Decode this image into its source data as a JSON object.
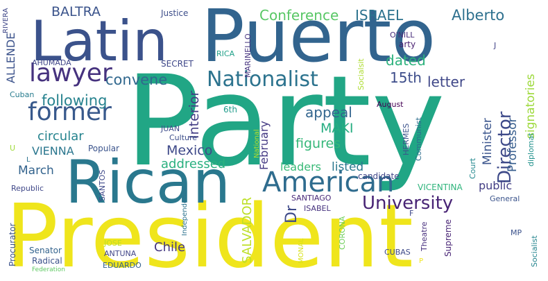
{
  "words": [
    {
      "text": "Party",
      "color": "#21a685"
    },
    {
      "text": "President",
      "color": "#efe51c"
    },
    {
      "text": "Puerto",
      "color": "#32648e"
    },
    {
      "text": "Rican",
      "color": "#2a788e"
    },
    {
      "text": "Latin",
      "color": "#3b528b"
    },
    {
      "text": "American",
      "color": "#2f6c8e"
    },
    {
      "text": "lawyer",
      "color": "#46327e"
    },
    {
      "text": "former",
      "color": "#38598c"
    },
    {
      "text": "Nationalist",
      "color": "#2c738e"
    },
    {
      "text": "University",
      "color": "#482475"
    },
    {
      "text": "Director",
      "color": "#3e4a89"
    },
    {
      "text": "Conference",
      "color": "#58c765"
    },
    {
      "text": "ISRAEL",
      "color": "#2c728e"
    },
    {
      "text": "Alberto",
      "color": "#2d708e"
    },
    {
      "text": "BALTRA",
      "color": "#3a538b"
    },
    {
      "text": "convene",
      "color": "#31688e"
    },
    {
      "text": "dated",
      "color": "#2db27d"
    },
    {
      "text": "15th",
      "color": "#3d4d8a"
    },
    {
      "text": "letter",
      "color": "#3f4788"
    },
    {
      "text": "following",
      "color": "#26828e"
    },
    {
      "text": "circular",
      "color": "#25838e"
    },
    {
      "text": "appeal",
      "color": "#32658e"
    },
    {
      "text": "MAKI",
      "color": "#26ad81"
    },
    {
      "text": "figures",
      "color": "#35b779"
    },
    {
      "text": "Mexico",
      "color": "#3e4989"
    },
    {
      "text": "addressed",
      "color": "#2ab07f"
    },
    {
      "text": "leaders",
      "color": "#38b977"
    },
    {
      "text": "listed",
      "color": "#2a778e"
    },
    {
      "text": "March",
      "color": "#33638d"
    },
    {
      "text": "VIENNA",
      "color": "#2a768e"
    },
    {
      "text": "Chile",
      "color": "#453882"
    },
    {
      "text": "public",
      "color": "#433e85"
    },
    {
      "text": "ALLENDE",
      "color": "#3b528b"
    },
    {
      "text": "Interior",
      "color": "#433e85"
    },
    {
      "text": "Professor",
      "color": "#365d8d"
    },
    {
      "text": "Minister",
      "color": "#3a548c"
    },
    {
      "text": "signatories",
      "color": "#9dd93b"
    },
    {
      "text": "February",
      "color": "#443983"
    },
    {
      "text": "SALVADOR",
      "color": "#bddf26"
    },
    {
      "text": "Dr",
      "color": "#3e4a89"
    },
    {
      "text": "Justice",
      "color": "#3d4e8a"
    },
    {
      "text": "Cuban",
      "color": "#287c8e"
    },
    {
      "text": "AHUMADA",
      "color": "#404588"
    },
    {
      "text": "SECRET",
      "color": "#3f4889"
    },
    {
      "text": "RICA",
      "color": "#1fa088"
    },
    {
      "text": "MARINELLO",
      "color": "#46337f"
    },
    {
      "text": "O'NILL",
      "color": "#472c7a"
    },
    {
      "text": "arty",
      "color": "#481f70"
    },
    {
      "text": "J",
      "color": "#414287"
    },
    {
      "text": "Socialsit",
      "color": "#addc30"
    },
    {
      "text": "6th",
      "color": "#1e9b8a"
    },
    {
      "text": "JUAN",
      "color": "#3e4c8a"
    },
    {
      "text": "Culture",
      "color": "#3d4e8a"
    },
    {
      "text": "Popular",
      "color": "#3a538b"
    },
    {
      "text": "August",
      "color": "#440154"
    },
    {
      "text": "Communist",
      "color": "#2e6e8e"
    },
    {
      "text": "diplomat",
      "color": "#21918c"
    },
    {
      "text": "Court",
      "color": "#23888e"
    },
    {
      "text": "HERMES",
      "color": "#3b528b"
    },
    {
      "text": "National",
      "color": "#b5de2b"
    },
    {
      "text": "candidate",
      "color": "#404688"
    },
    {
      "text": "Republic",
      "color": "#3f4788"
    },
    {
      "text": "SANTOS",
      "color": "#3e4989"
    },
    {
      "text": "VICENTINA",
      "color": "#2fb47c"
    },
    {
      "text": "SANTIAGO",
      "color": "#482878"
    },
    {
      "text": "ISABEL",
      "color": "#46327e"
    },
    {
      "text": "Independence",
      "color": "#2c728e"
    },
    {
      "text": "General",
      "color": "#3a538b"
    },
    {
      "text": "Procurator",
      "color": "#3b528b"
    },
    {
      "text": "Senator",
      "color": "#33638d"
    },
    {
      "text": "Radical",
      "color": "#3b528b"
    },
    {
      "text": "JOSE",
      "color": "#bddf26"
    },
    {
      "text": "ANTUNA",
      "color": "#404588"
    },
    {
      "text": "EDUARDO",
      "color": "#34618d"
    },
    {
      "text": "CORONA",
      "color": "#6ece58"
    },
    {
      "text": "MONAL",
      "color": "#d8e219"
    },
    {
      "text": "CUBAS",
      "color": "#3e4a89"
    },
    {
      "text": "Theatre",
      "color": "#472f7d"
    },
    {
      "text": "Supreme",
      "color": "#482475"
    },
    {
      "text": "MP",
      "color": "#3b528b"
    },
    {
      "text": "Socialist",
      "color": "#25858e"
    },
    {
      "text": "Federation",
      "color": "#5ec962"
    },
    {
      "text": "RIVERA",
      "color": "#3f4788"
    },
    {
      "text": "F",
      "color": "#3e4989"
    },
    {
      "text": "U",
      "color": "#9fda3a"
    },
    {
      "text": "L",
      "color": "#2c738e"
    },
    {
      "text": "P",
      "color": "#f1e51d"
    }
  ]
}
